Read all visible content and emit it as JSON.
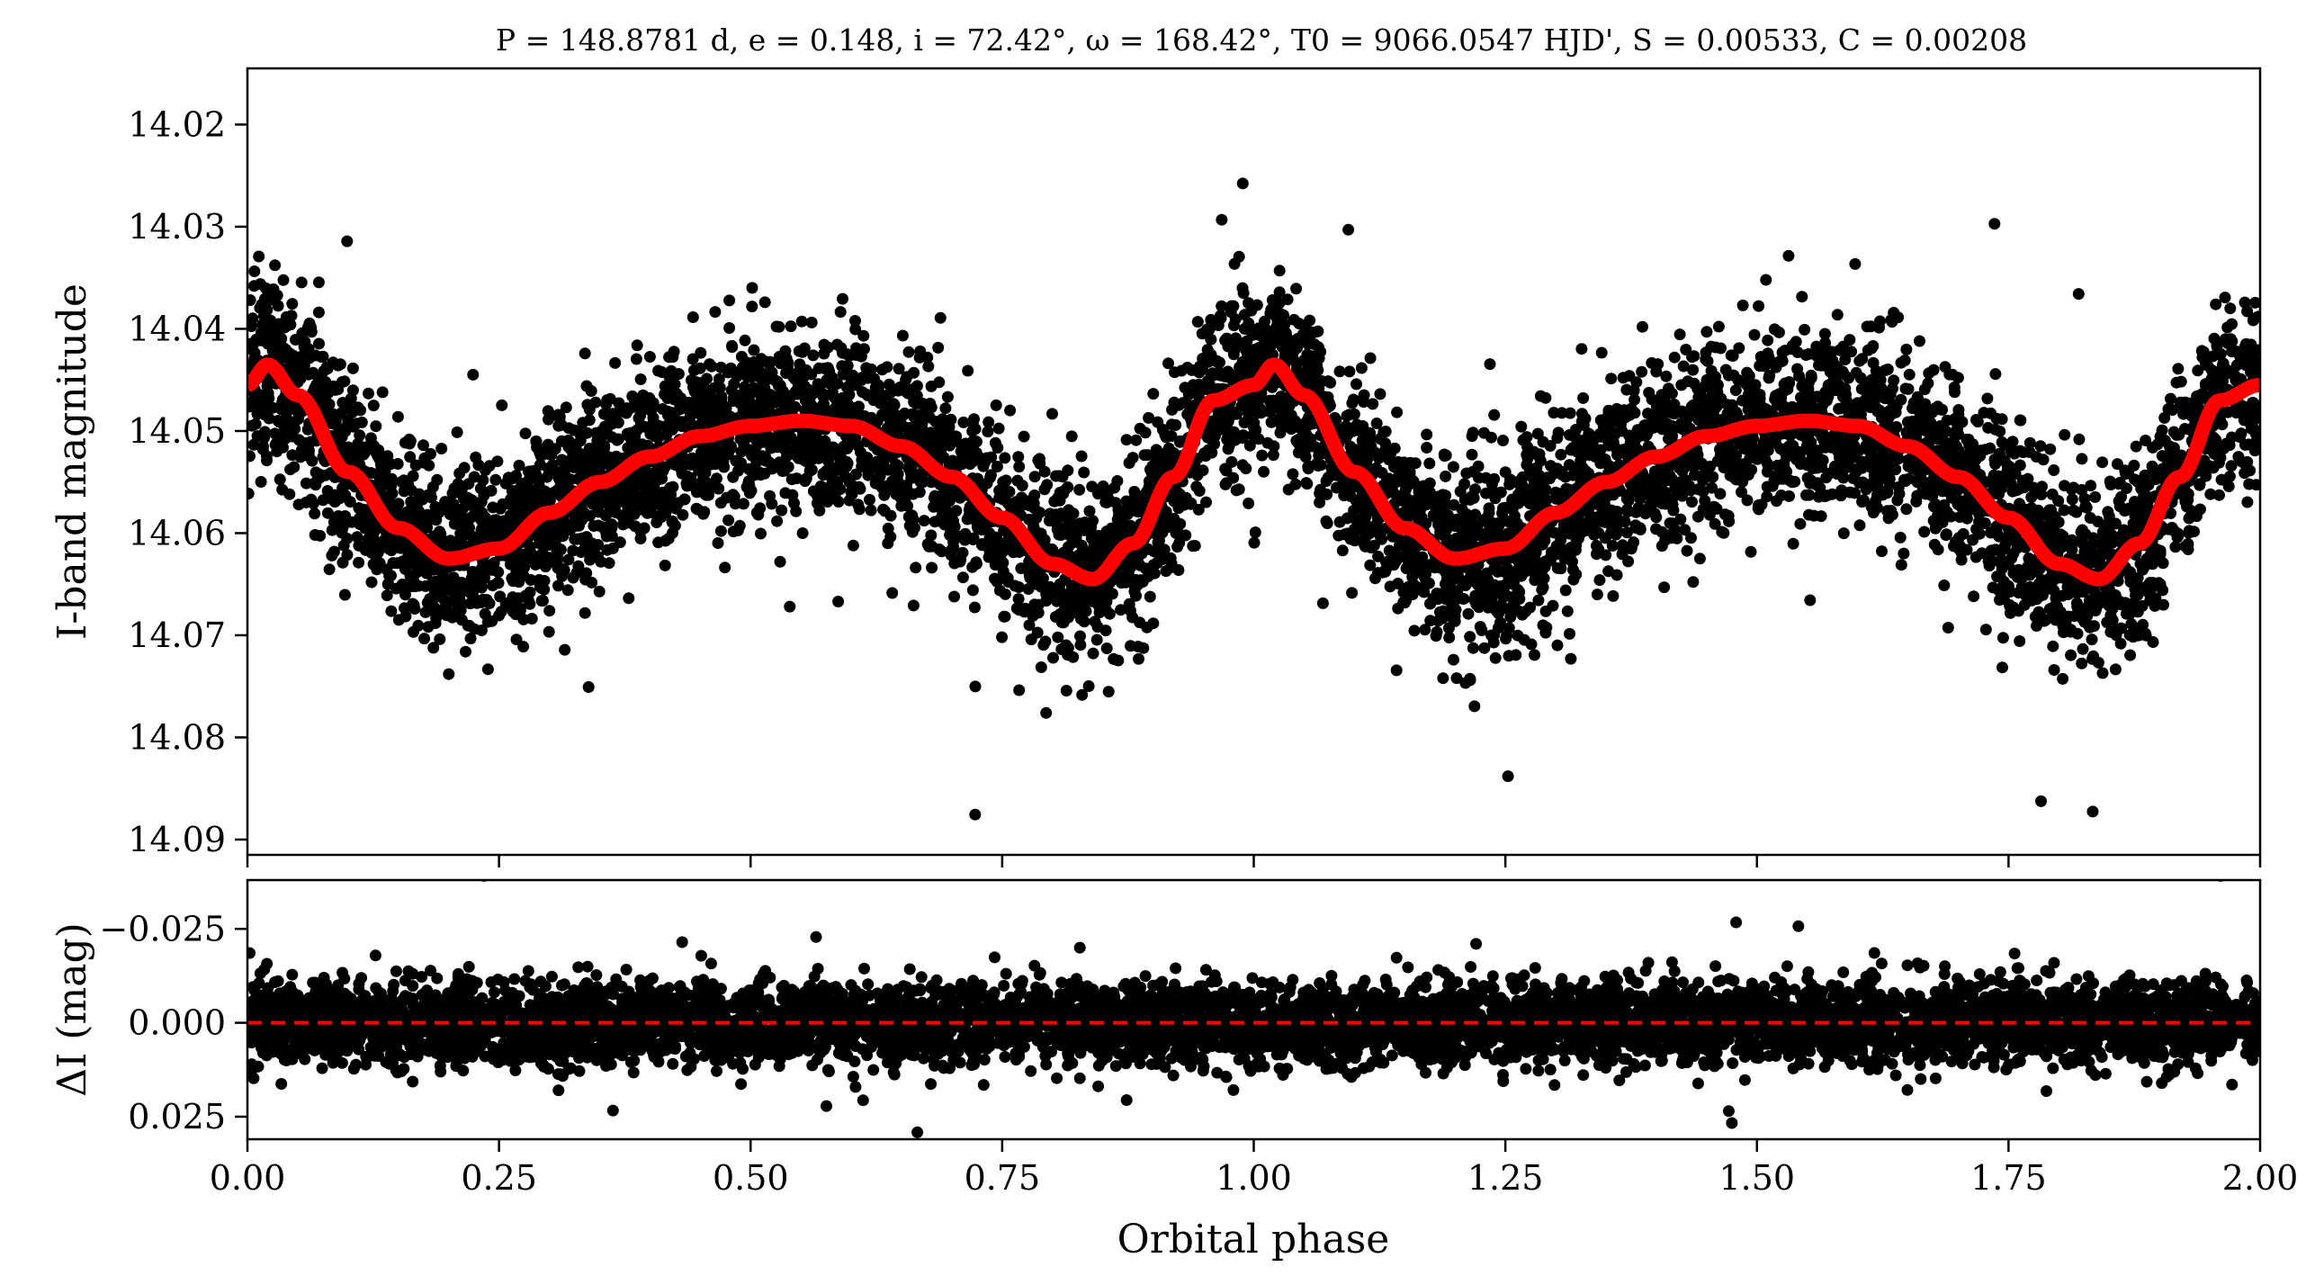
{
  "chart_data": {
    "type": "scatter",
    "title": "P = 148.8781 d, e = 0.148, i = 72.42°, ω = 168.42°, T0 = 9066.0547 HJD', S = 0.00533, C = 0.00208",
    "xlabel": "Orbital phase",
    "xlim": [
      0.0,
      2.0
    ],
    "xticks": [
      "0.00",
      "0.25",
      "0.50",
      "0.75",
      "1.00",
      "1.25",
      "1.50",
      "1.75",
      "2.00"
    ],
    "colors": {
      "points": "#000000",
      "model": "#ff0000",
      "zero_line": "#ff0000"
    },
    "panels": [
      {
        "name": "light-curve",
        "ylabel": "I-band magnitude",
        "ylim": [
          14.0915,
          14.0145
        ],
        "inverted_y": true,
        "yticks": [
          "14.02",
          "14.03",
          "14.04",
          "14.05",
          "14.06",
          "14.07",
          "14.08",
          "14.09"
        ],
        "observations": {
          "x": [
            0.0,
            0.02,
            0.05,
            0.1,
            0.15,
            0.2,
            0.25,
            0.3,
            0.35,
            0.4,
            0.45,
            0.5,
            0.55,
            0.6,
            0.65,
            0.7,
            0.75,
            0.8,
            0.84,
            0.88,
            0.92,
            0.96,
            1.0,
            1.02,
            1.05,
            1.1,
            1.15,
            1.2,
            1.25,
            1.3,
            1.35,
            1.4,
            1.45,
            1.5,
            1.55,
            1.6,
            1.65,
            1.7,
            1.75,
            1.8,
            1.84,
            1.88,
            1.92,
            1.96,
            2.0
          ],
          "y": [
            14.0455,
            14.0435,
            14.0465,
            14.054,
            14.0595,
            14.0625,
            14.0615,
            14.058,
            14.055,
            14.0525,
            14.0505,
            14.0495,
            14.049,
            14.0495,
            14.0515,
            14.0545,
            14.0585,
            14.063,
            14.0645,
            14.061,
            14.0545,
            14.047,
            14.0455,
            14.0435,
            14.0465,
            14.054,
            14.0595,
            14.0625,
            14.0615,
            14.058,
            14.055,
            14.0525,
            14.0505,
            14.0495,
            14.049,
            14.0495,
            14.0515,
            14.0545,
            14.0585,
            14.063,
            14.0645,
            14.061,
            14.0545,
            14.047,
            14.0455
          ],
          "scatter": 0.009
        },
        "model": {
          "x": [
            0.0,
            0.02,
            0.05,
            0.1,
            0.15,
            0.2,
            0.25,
            0.3,
            0.35,
            0.4,
            0.45,
            0.5,
            0.55,
            0.6,
            0.65,
            0.7,
            0.75,
            0.8,
            0.84,
            0.88,
            0.92,
            0.96,
            1.0,
            1.02,
            1.05,
            1.1,
            1.15,
            1.2,
            1.25,
            1.3,
            1.35,
            1.4,
            1.45,
            1.5,
            1.55,
            1.6,
            1.65,
            1.7,
            1.75,
            1.8,
            1.84,
            1.88,
            1.92,
            1.96,
            2.0
          ],
          "y": [
            14.0455,
            14.0435,
            14.0465,
            14.054,
            14.0595,
            14.0625,
            14.0615,
            14.058,
            14.055,
            14.0525,
            14.0505,
            14.0495,
            14.049,
            14.0495,
            14.0515,
            14.0545,
            14.0585,
            14.063,
            14.0645,
            14.061,
            14.0545,
            14.047,
            14.0455,
            14.0435,
            14.0465,
            14.054,
            14.0595,
            14.0625,
            14.0615,
            14.058,
            14.055,
            14.0525,
            14.0505,
            14.0495,
            14.049,
            14.0495,
            14.0515,
            14.0545,
            14.0585,
            14.063,
            14.0645,
            14.061,
            14.0545,
            14.047,
            14.0455
          ]
        }
      },
      {
        "name": "residuals",
        "ylabel": "ΔI (mag)",
        "ylim": [
          0.031,
          -0.038
        ],
        "inverted_y": true,
        "yticks": [
          "−0.025",
          "0.000",
          "0.025"
        ],
        "scatter": 0.006,
        "zero_line": 0.0
      }
    ]
  }
}
